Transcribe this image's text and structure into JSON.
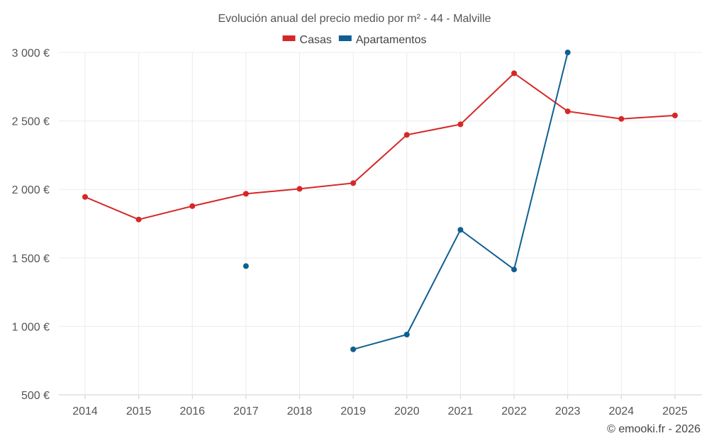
{
  "chart_data": {
    "type": "line",
    "title": "Evolución anual del precio medio por m² - 44 - Malville",
    "categories": [
      "2014",
      "2015",
      "2016",
      "2017",
      "2018",
      "2019",
      "2020",
      "2021",
      "2022",
      "2023",
      "2024",
      "2025"
    ],
    "series": [
      {
        "name": "Casas",
        "color": "#d62728",
        "values": [
          1945,
          1780,
          1878,
          1968,
          2004,
          2046,
          2398,
          2475,
          2848,
          2570,
          2515,
          2540
        ]
      },
      {
        "name": "Apartamentos",
        "color": "#0f5f91",
        "values": [
          null,
          null,
          null,
          1440,
          null,
          832,
          940,
          1705,
          1415,
          3000,
          null,
          null
        ]
      }
    ],
    "ylim": [
      500,
      3000
    ],
    "yticks": [
      500,
      1000,
      1500,
      2000,
      2500,
      3000
    ],
    "ytick_labels": [
      "500 €",
      "1 000 €",
      "1 500 €",
      "2 000 €",
      "2 500 €",
      "3 000 €"
    ],
    "xlabel": "",
    "ylabel": "",
    "grid": true,
    "legend_position": "top-center"
  },
  "footer": {
    "credit": "© emooki.fr - 2026"
  }
}
